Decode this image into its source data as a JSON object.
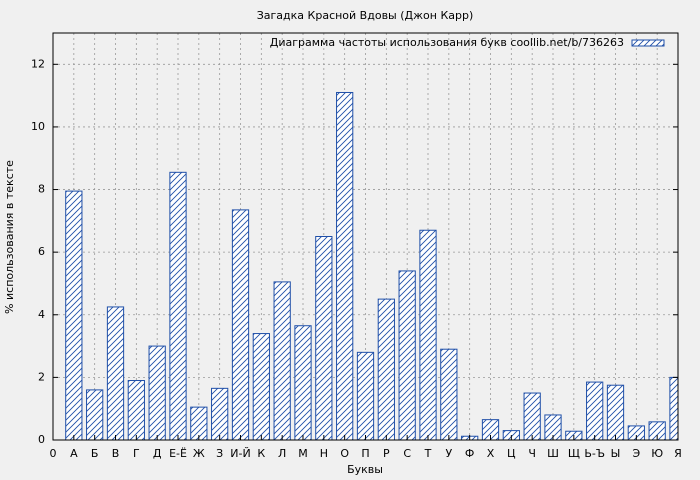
{
  "chart_data": {
    "type": "bar",
    "title": "Загадка Красной Вдовы (Джон Карр)",
    "xlabel": "Буквы",
    "ylabel": "% использования в тексте",
    "categories": [
      "0",
      "А",
      "Б",
      "В",
      "Г",
      "Д",
      "Е-Ё",
      "Ж",
      "З",
      "И-Й",
      "К",
      "Л",
      "М",
      "Н",
      "О",
      "П",
      "Р",
      "С",
      "Т",
      "У",
      "Ф",
      "Х",
      "Ц",
      "Ч",
      "Ш",
      "Щ",
      "Ь-Ъ",
      "Ы",
      "Э",
      "Ю",
      "Я"
    ],
    "series": [
      {
        "name": "Диаграмма частоты использования букв coollib.net/b/736263",
        "color": "#1f4fa8",
        "values": [
          null,
          7.95,
          1.6,
          4.25,
          1.9,
          3.0,
          8.55,
          1.05,
          1.65,
          7.35,
          3.4,
          5.05,
          3.65,
          6.5,
          11.1,
          2.8,
          4.5,
          5.4,
          6.7,
          2.9,
          0.12,
          0.65,
          0.3,
          1.5,
          0.8,
          0.28,
          1.85,
          1.75,
          0.45,
          0.58,
          2.0
        ]
      }
    ],
    "ylim": [
      0,
      13
    ],
    "yticks": [
      0,
      2,
      4,
      6,
      8,
      10,
      12
    ],
    "grid": true,
    "legend": "top-right"
  }
}
